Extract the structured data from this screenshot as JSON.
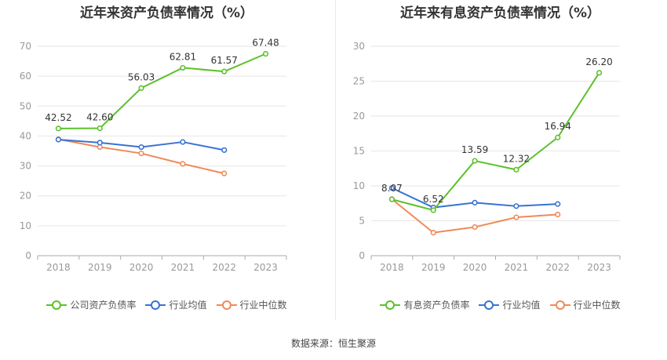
{
  "colors": {
    "company": "#5cc12a",
    "industry_avg": "#3973d0",
    "industry_median": "#ef8a5a",
    "axis": "#999999",
    "grid": "#e6e6e6",
    "text": "#333333"
  },
  "source": "数据来源：恒生聚源",
  "chart_data": [
    {
      "type": "line",
      "title": "近年来资产负债率情况（%）",
      "categories": [
        "2018",
        "2019",
        "2020",
        "2021",
        "2022",
        "2023"
      ],
      "ylim": [
        0,
        70
      ],
      "yticks": [
        "0",
        "10",
        "20",
        "30",
        "40",
        "50",
        "60",
        "70"
      ],
      "grid": true,
      "legend_placement": "bottom",
      "series": [
        {
          "name": "公司资产负债率",
          "color_key": "company",
          "values": [
            42.52,
            42.6,
            56.03,
            62.81,
            61.57,
            67.48
          ],
          "labels": [
            "42.52",
            "42.60",
            "56.03",
            "62.81",
            "61.57",
            "67.48"
          ]
        },
        {
          "name": "行业均值",
          "color_key": "industry_avg",
          "values": [
            38.8,
            37.8,
            36.3,
            38.0,
            35.3,
            null
          ]
        },
        {
          "name": "行业中位数",
          "color_key": "industry_median",
          "values": [
            38.9,
            36.3,
            34.2,
            30.7,
            27.5,
            null
          ]
        }
      ]
    },
    {
      "type": "line",
      "title": "近年来有息资产负债率情况（%）",
      "categories": [
        "2018",
        "2019",
        "2020",
        "2021",
        "2022",
        "2023"
      ],
      "ylim": [
        0,
        30
      ],
      "yticks": [
        "0",
        "5",
        "10",
        "15",
        "20",
        "25",
        "30"
      ],
      "grid": true,
      "legend_placement": "bottom",
      "series": [
        {
          "name": "有息资产负债率",
          "color_key": "company",
          "values": [
            8.07,
            6.52,
            13.59,
            12.32,
            16.94,
            26.2
          ],
          "labels": [
            "8.07",
            "6.52",
            "13.59",
            "12.32",
            "16.94",
            "26.20"
          ]
        },
        {
          "name": "行业均值",
          "color_key": "industry_avg",
          "values": [
            9.7,
            6.9,
            7.6,
            7.1,
            7.4,
            null
          ]
        },
        {
          "name": "行业中位数",
          "color_key": "industry_median",
          "values": [
            8.1,
            3.3,
            4.1,
            5.5,
            5.9,
            null
          ]
        }
      ]
    }
  ]
}
